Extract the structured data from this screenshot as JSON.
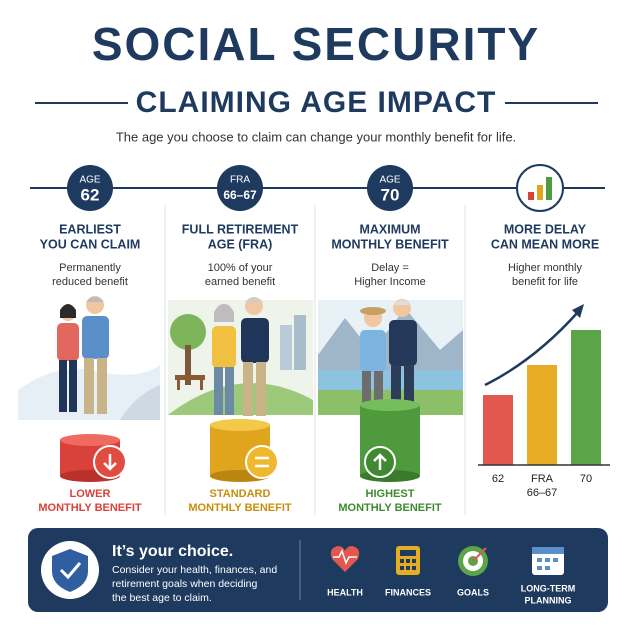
{
  "header": {
    "title": "SOCIAL SECURITY",
    "subtitle": "CLAIMING AGE IMPACT",
    "tagline": "The age you choose to claim can change your monthly benefit for life."
  },
  "columns": [
    {
      "badge": [
        "AGE",
        "62"
      ],
      "heading": [
        "EARLIEST",
        "YOU CAN CLAIM"
      ],
      "description": [
        "Permanently",
        "reduced benefit"
      ],
      "result": [
        "LOWER",
        "MONTHLY BENEFIT"
      ]
    },
    {
      "badge": [
        "FRA",
        "66–67"
      ],
      "heading": [
        "FULL RETIREMENT",
        "AGE (FRA)"
      ],
      "description": [
        "100% of your",
        "earned benefit"
      ],
      "result": [
        "STANDARD",
        "MONTHLY BENEFIT"
      ]
    },
    {
      "badge": [
        "AGE",
        "70"
      ],
      "heading": [
        "MAXIMUM",
        "MONTHLY BENEFIT"
      ],
      "description": [
        "Delay =",
        "Higher Income"
      ],
      "result": [
        "HIGHEST",
        "MONTHLY BENEFIT"
      ]
    },
    {
      "heading": [
        "MORE DELAY",
        "CAN MEAN MORE"
      ],
      "description": [
        "Higher monthly",
        "benefit for life"
      ],
      "chart_labels": [
        "62",
        [
          "FRA",
          "66–67"
        ],
        "70"
      ]
    }
  ],
  "footer": {
    "title": "It’s your choice.",
    "body": [
      "Consider your health, finances, and",
      "retirement goals when deciding",
      "the best age to claim."
    ],
    "icons": [
      "HEALTH",
      "FINANCES",
      "GOALS",
      [
        "LONG-TERM",
        "PLANNING"
      ]
    ]
  }
}
